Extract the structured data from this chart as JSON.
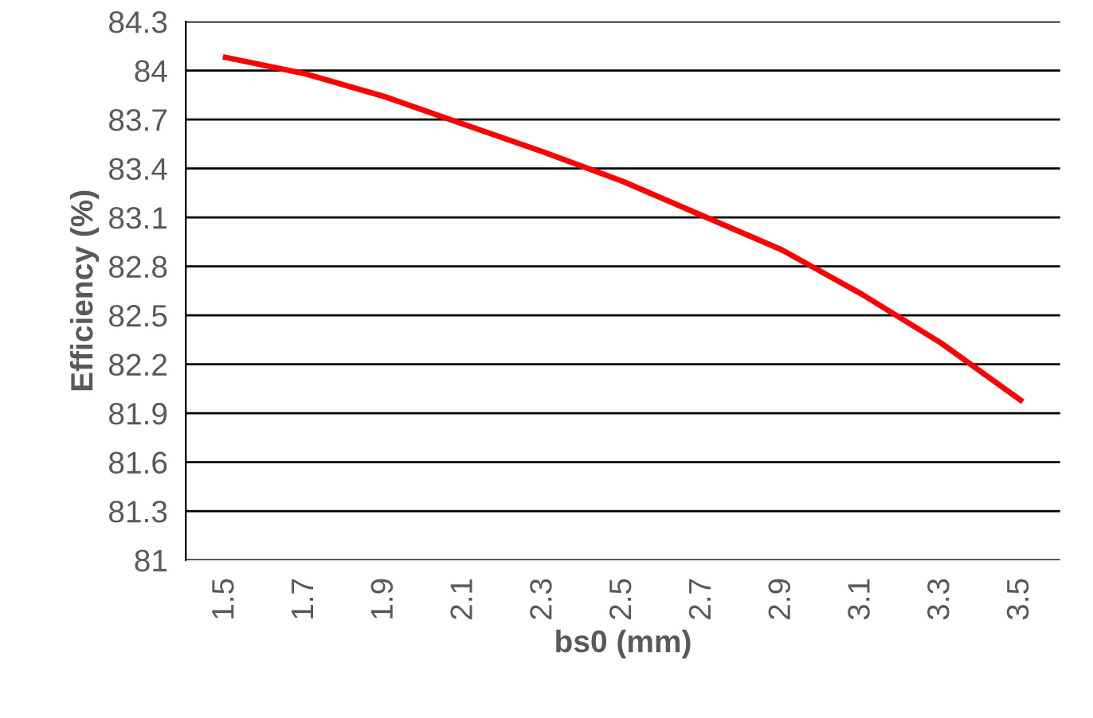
{
  "chart_data": {
    "type": "line",
    "xlabel": "bs0 (mm)",
    "ylabel": "Efficiency (%)",
    "categories": [
      "1.5",
      "1.7",
      "1.9",
      "2.1",
      "2.3",
      "2.5",
      "2.7",
      "2.9",
      "3.1",
      "3.3",
      "3.5"
    ],
    "series": [
      {
        "color": "#ff0000",
        "values": [
          84.08,
          83.98,
          83.84,
          83.67,
          83.5,
          83.32,
          83.11,
          82.9,
          82.63,
          82.33,
          81.98
        ]
      }
    ],
    "ylim": [
      81,
      84.3
    ],
    "yticks": [
      81,
      81.3,
      81.6,
      81.9,
      82.2,
      82.5,
      82.8,
      83.1,
      83.4,
      83.7,
      84,
      84.3
    ],
    "grid": "y",
    "marker": "none",
    "line_style": "solid",
    "legend": false
  }
}
